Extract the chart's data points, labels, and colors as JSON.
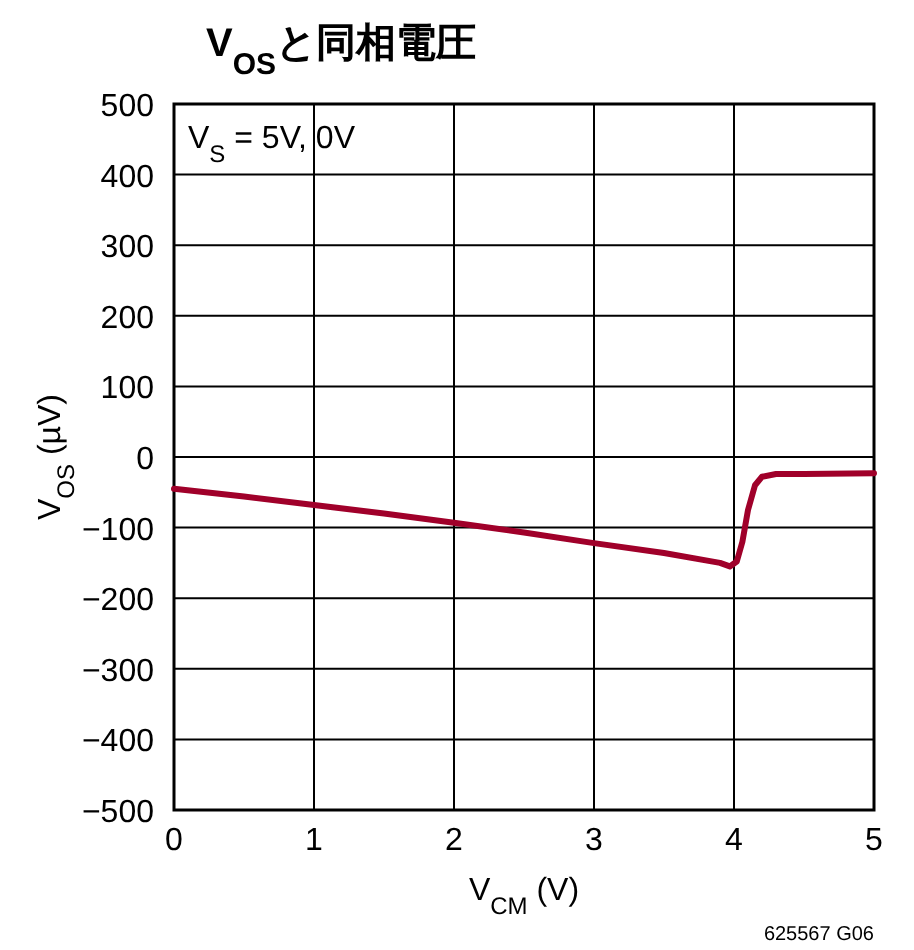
{
  "chart_data": {
    "type": "line",
    "title": "V$_{OS}$と同相電圧",
    "xlabel": "V$_{CM}$ (V)",
    "ylabel": "V$_{OS}$ (µV)",
    "annotations": [
      "V$_{S}$ = 5V, 0V",
      "625567 G06"
    ],
    "series": [
      {
        "color": "#a0002a",
        "x": [
          0,
          0.5,
          1,
          1.5,
          2,
          2.5,
          3,
          3.5,
          3.9,
          3.97,
          4.02,
          4.06,
          4.1,
          4.15,
          4.2,
          4.3,
          4.5,
          5
        ],
        "values": [
          -45,
          -56,
          -68,
          -80,
          -93,
          -107,
          -122,
          -136,
          -150,
          -155,
          -148,
          -120,
          -75,
          -40,
          -28,
          -24,
          -24,
          -23
        ]
      }
    ],
    "xlim": [
      0,
      5
    ],
    "xticks": [
      0,
      1,
      2,
      3,
      4,
      5
    ],
    "ylim": [
      -500,
      500
    ],
    "yticks": [
      -500,
      -400,
      -300,
      -200,
      -100,
      0,
      100,
      200,
      300,
      400,
      500
    ],
    "grid": true,
    "marker": "none",
    "line_style": "solid"
  }
}
